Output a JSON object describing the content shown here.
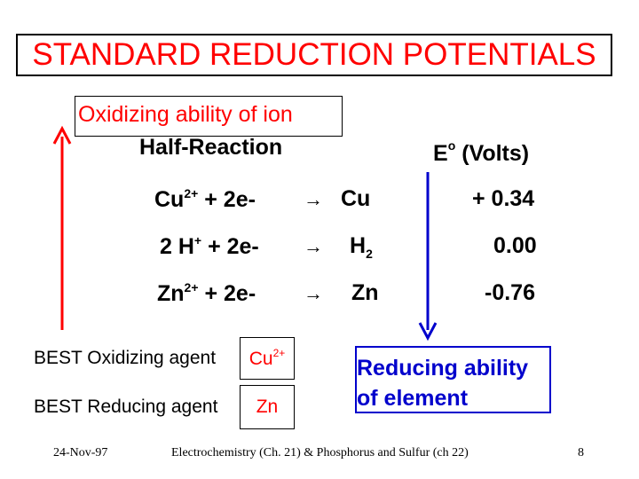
{
  "title": "STANDARD REDUCTION POTENTIALS",
  "oxidizing_label": "Oxidizing ability of ion",
  "header": {
    "half_reaction": "Half-Reaction",
    "eo_symbol": "E",
    "eo_superscript": "o",
    "eo_units": " (Volts)"
  },
  "reactions": [
    {
      "species": "Cu",
      "charge": "2+",
      "prefix": "",
      "electrons": "+  2e-",
      "arrow": "→",
      "product": "Cu",
      "product_sub": "",
      "potential": "+ 0.34"
    },
    {
      "species": "H",
      "charge": "+",
      "prefix": "2 ",
      "electrons": "+  2e-",
      "arrow": "→",
      "product": "H",
      "product_sub": "2",
      "potential": "0.00"
    },
    {
      "species": "Zn",
      "charge": "2+",
      "prefix": "",
      "electrons": "+  2e-",
      "arrow": "→",
      "product": "Zn",
      "product_sub": "",
      "potential": "-0.76"
    }
  ],
  "best_oxidizing": {
    "label": "BEST Oxidizing agent",
    "agent": "Cu",
    "agent_charge": "2+"
  },
  "best_reducing": {
    "label": "BEST Reducing agent",
    "agent": "Zn"
  },
  "reducing_label": {
    "line1": "Reducing ability",
    "line2": "of element"
  },
  "footer": {
    "date": "24-Nov-97",
    "course": "Electrochemistry (Ch. 21) & Phosphorus and Sulfur (ch 22)",
    "page": "8"
  },
  "colors": {
    "red": "#ff0000",
    "blue": "#0000cc",
    "text": "#000000"
  },
  "icons": {
    "up_arrow": "red-up-arrow-icon",
    "down_arrow": "blue-down-arrow-icon"
  }
}
